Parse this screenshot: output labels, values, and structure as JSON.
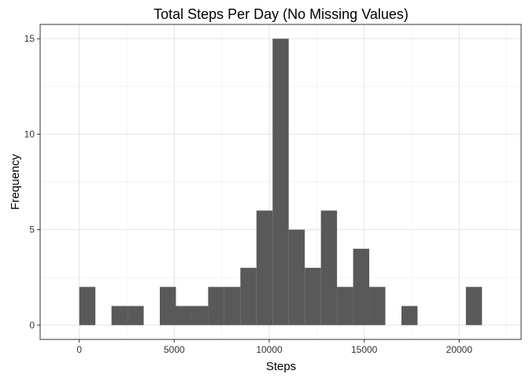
{
  "chart_data": {
    "type": "bar",
    "title": "Total Steps Per Day (No Missing Values)",
    "xlabel": "Steps",
    "ylabel": "Frequency",
    "xlim": [
      -2060,
      23260
    ],
    "ylim": [
      -0.75,
      15.75
    ],
    "x_ticks": [
      0,
      5000,
      10000,
      15000,
      20000
    ],
    "x_tick_labels": [
      "0",
      "5000",
      "10000",
      "15000",
      "20000"
    ],
    "y_ticks": [
      0,
      5,
      10,
      15
    ],
    "y_tick_labels": [
      "0",
      "5",
      "10",
      "15"
    ],
    "grid": true,
    "bar_color": "#595959",
    "bins": [
      {
        "start": 0,
        "end": 848,
        "count": 2
      },
      {
        "start": 848,
        "end": 1696,
        "count": 0
      },
      {
        "start": 1696,
        "end": 2544,
        "count": 1
      },
      {
        "start": 2544,
        "end": 3392,
        "count": 1
      },
      {
        "start": 3392,
        "end": 4240,
        "count": 0
      },
      {
        "start": 4240,
        "end": 5088,
        "count": 2
      },
      {
        "start": 5088,
        "end": 5936,
        "count": 1
      },
      {
        "start": 5936,
        "end": 6784,
        "count": 1
      },
      {
        "start": 6784,
        "end": 7632,
        "count": 2
      },
      {
        "start": 7632,
        "end": 8480,
        "count": 2
      },
      {
        "start": 8480,
        "end": 9328,
        "count": 3
      },
      {
        "start": 9328,
        "end": 10176,
        "count": 6
      },
      {
        "start": 10176,
        "end": 11024,
        "count": 15
      },
      {
        "start": 11024,
        "end": 11872,
        "count": 5
      },
      {
        "start": 11872,
        "end": 12720,
        "count": 3
      },
      {
        "start": 12720,
        "end": 13568,
        "count": 6
      },
      {
        "start": 13568,
        "end": 14416,
        "count": 2
      },
      {
        "start": 14416,
        "end": 15264,
        "count": 4
      },
      {
        "start": 15264,
        "end": 16112,
        "count": 2
      },
      {
        "start": 16112,
        "end": 16960,
        "count": 0
      },
      {
        "start": 16960,
        "end": 17808,
        "count": 1
      },
      {
        "start": 17808,
        "end": 18656,
        "count": 0
      },
      {
        "start": 18656,
        "end": 19504,
        "count": 0
      },
      {
        "start": 19504,
        "end": 20352,
        "count": 0
      },
      {
        "start": 20352,
        "end": 21200,
        "count": 2
      }
    ]
  }
}
